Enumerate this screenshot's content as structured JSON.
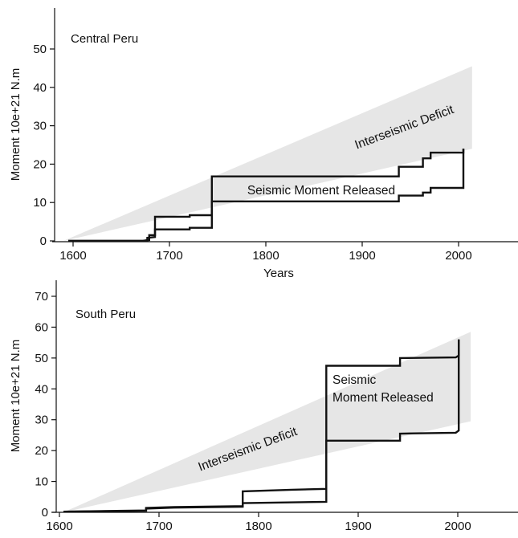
{
  "colors": {
    "deficit_fill": "#e6e6e6",
    "step_line": "#111111",
    "axis": "#111111"
  },
  "chart_data": [
    {
      "type": "area",
      "region_label": "Central Peru",
      "xlabel": "Years",
      "ylabel": "Moment 10e+21 N.m",
      "xlim": [
        1580,
        2050
      ],
      "ylim": [
        0,
        55
      ],
      "x_ticks": [
        1600,
        1700,
        1800,
        1900,
        2000
      ],
      "y_ticks": [
        0,
        10,
        20,
        30,
        40,
        50
      ],
      "grid": false,
      "annotations": {
        "deficit": "Interseismic Deficit",
        "released": "Seismic Moment Released"
      },
      "deficit_band": {
        "lower": [
          [
            1590,
            0
          ],
          [
            2014,
            24
          ]
        ],
        "upper": [
          [
            1590,
            0
          ],
          [
            2014,
            45.5
          ]
        ]
      },
      "series": [
        {
          "values": [
            [
              1595,
              0
            ],
            [
              1672,
              0
            ],
            [
              1677,
              0.2
            ],
            [
              1677,
              0.8
            ],
            [
              1685,
              1.0
            ],
            [
              1685,
              3.0
            ],
            [
              1721,
              3.0
            ],
            [
              1721,
              3.4
            ],
            [
              1744,
              3.4
            ],
            [
              1744,
              10.3
            ],
            [
              1938,
              10.3
            ],
            [
              1938,
              11.8
            ],
            [
              1963,
              11.8
            ],
            [
              1963,
              12.6
            ],
            [
              1971,
              12.6
            ],
            [
              1971,
              13.8
            ],
            [
              2005,
              13.8
            ],
            [
              2005,
              24.0
            ]
          ]
        },
        {
          "values": [
            [
              1595,
              0
            ],
            [
              1672,
              0
            ],
            [
              1679,
              0.2
            ],
            [
              1679,
              1.5
            ],
            [
              1685,
              1.5
            ],
            [
              1685,
              6.3
            ],
            [
              1721,
              6.3
            ],
            [
              1721,
              6.7
            ],
            [
              1744,
              6.7
            ],
            [
              1744,
              16.8
            ],
            [
              1938,
              16.8
            ],
            [
              1938,
              19.3
            ],
            [
              1963,
              19.3
            ],
            [
              1963,
              21.5
            ],
            [
              1971,
              21.5
            ],
            [
              1971,
              23.0
            ],
            [
              2005,
              23.0
            ],
            [
              2005,
              24.0
            ]
          ]
        }
      ]
    },
    {
      "type": "area",
      "region_label": "South Peru",
      "xlabel": "",
      "ylabel": "Moment 10e+21 N.m",
      "xlim": [
        1595,
        2055
      ],
      "ylim": [
        0,
        73
      ],
      "x_ticks": [
        1600,
        1700,
        1800,
        1900,
        2000
      ],
      "y_ticks": [
        0,
        10,
        20,
        30,
        40,
        50,
        60,
        70
      ],
      "grid": false,
      "annotations": {
        "deficit": "Interseismic Deficit",
        "released": [
          "Seismic",
          "Moment Released"
        ]
      },
      "deficit_band": {
        "lower": [
          [
            1604,
            0
          ],
          [
            2013,
            29.5
          ]
        ],
        "upper": [
          [
            1604,
            0
          ],
          [
            2013,
            58.5
          ]
        ]
      },
      "series": [
        {
          "values": [
            [
              1604,
              0.2
            ],
            [
              1687,
              0.5
            ],
            [
              1687,
              1.2
            ],
            [
              1715,
              1.5
            ],
            [
              1784,
              1.8
            ],
            [
              1784,
              3.0
            ],
            [
              1868,
              3.4
            ],
            [
              1868,
              23.2
            ],
            [
              1942,
              23.2
            ],
            [
              1942,
              25.5
            ],
            [
              1998,
              25.8
            ],
            [
              2001,
              26.5
            ],
            [
              2001,
              56.0
            ]
          ]
        },
        {
          "values": [
            [
              1604,
              0.2
            ],
            [
              1687,
              0.6
            ],
            [
              1687,
              1.4
            ],
            [
              1715,
              1.7
            ],
            [
              1784,
              2.0
            ],
            [
              1784,
              6.8
            ],
            [
              1833,
              7.3
            ],
            [
              1868,
              7.6
            ],
            [
              1868,
              47.5
            ],
            [
              1942,
              47.5
            ],
            [
              1942,
              50.0
            ],
            [
              1998,
              50.2
            ],
            [
              2001,
              50.8
            ],
            [
              2001,
              56.0
            ]
          ]
        }
      ]
    }
  ]
}
